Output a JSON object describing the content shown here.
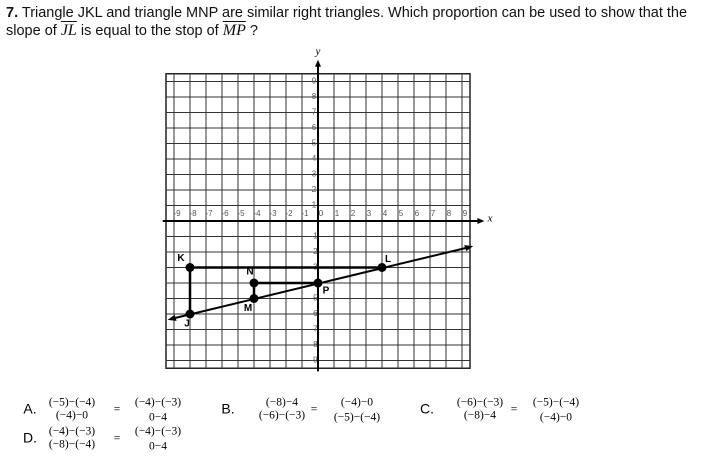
{
  "question": {
    "number": "7.",
    "text_1": "Triangle JKL and triangle MNP are similar right triangles. Which proportion can be used to show that the",
    "text_2": "slope of",
    "segment_1": "JL",
    "text_3": "is equal to the stop of",
    "segment_2": "MP",
    "text_4": "?"
  },
  "graph": {
    "x_axis_label": "x",
    "y_axis_label": "y",
    "x_tick_labels": [
      -9,
      -8,
      -7,
      -6,
      -5,
      -4,
      -3,
      -2,
      -1,
      0,
      1,
      2,
      3,
      4,
      5,
      6,
      7,
      8,
      9
    ],
    "y_tick_labels": [
      9,
      8,
      7,
      6,
      5,
      4,
      3,
      2,
      1,
      -1,
      -2,
      -3,
      -4,
      -5,
      -6,
      -7,
      -8,
      -9
    ],
    "points": [
      "K",
      "L",
      "J",
      "N",
      "P",
      "M"
    ]
  },
  "options": [
    {
      "letter": "A.",
      "left": {
        "num": "(−5)−(−4)",
        "den": "(−4)−0"
      },
      "equals": "=",
      "right": {
        "num": "(−4)−(−3)",
        "den": "0−4"
      }
    },
    {
      "letter": "B.",
      "left": {
        "num": "(−8)−4",
        "den": "(−6)−(−3)"
      },
      "equals": "=",
      "right": {
        "num": "(−4)−0",
        "den": "(−5)−(−4)"
      }
    },
    {
      "letter": "C.",
      "left": {
        "num": "(−6)−(−3)",
        "den": "(−8)−4"
      },
      "equals": "=",
      "right": {
        "num": "(−5)−(−4)",
        "den": "(−4)−0"
      }
    },
    {
      "letter": "D.",
      "left": {
        "num": "(−4)−(−3)",
        "den": "(−8)−(−4)"
      },
      "equals": "=",
      "right": {
        "num": "(−4)−(−3)",
        "den": "0−4"
      }
    }
  ]
}
